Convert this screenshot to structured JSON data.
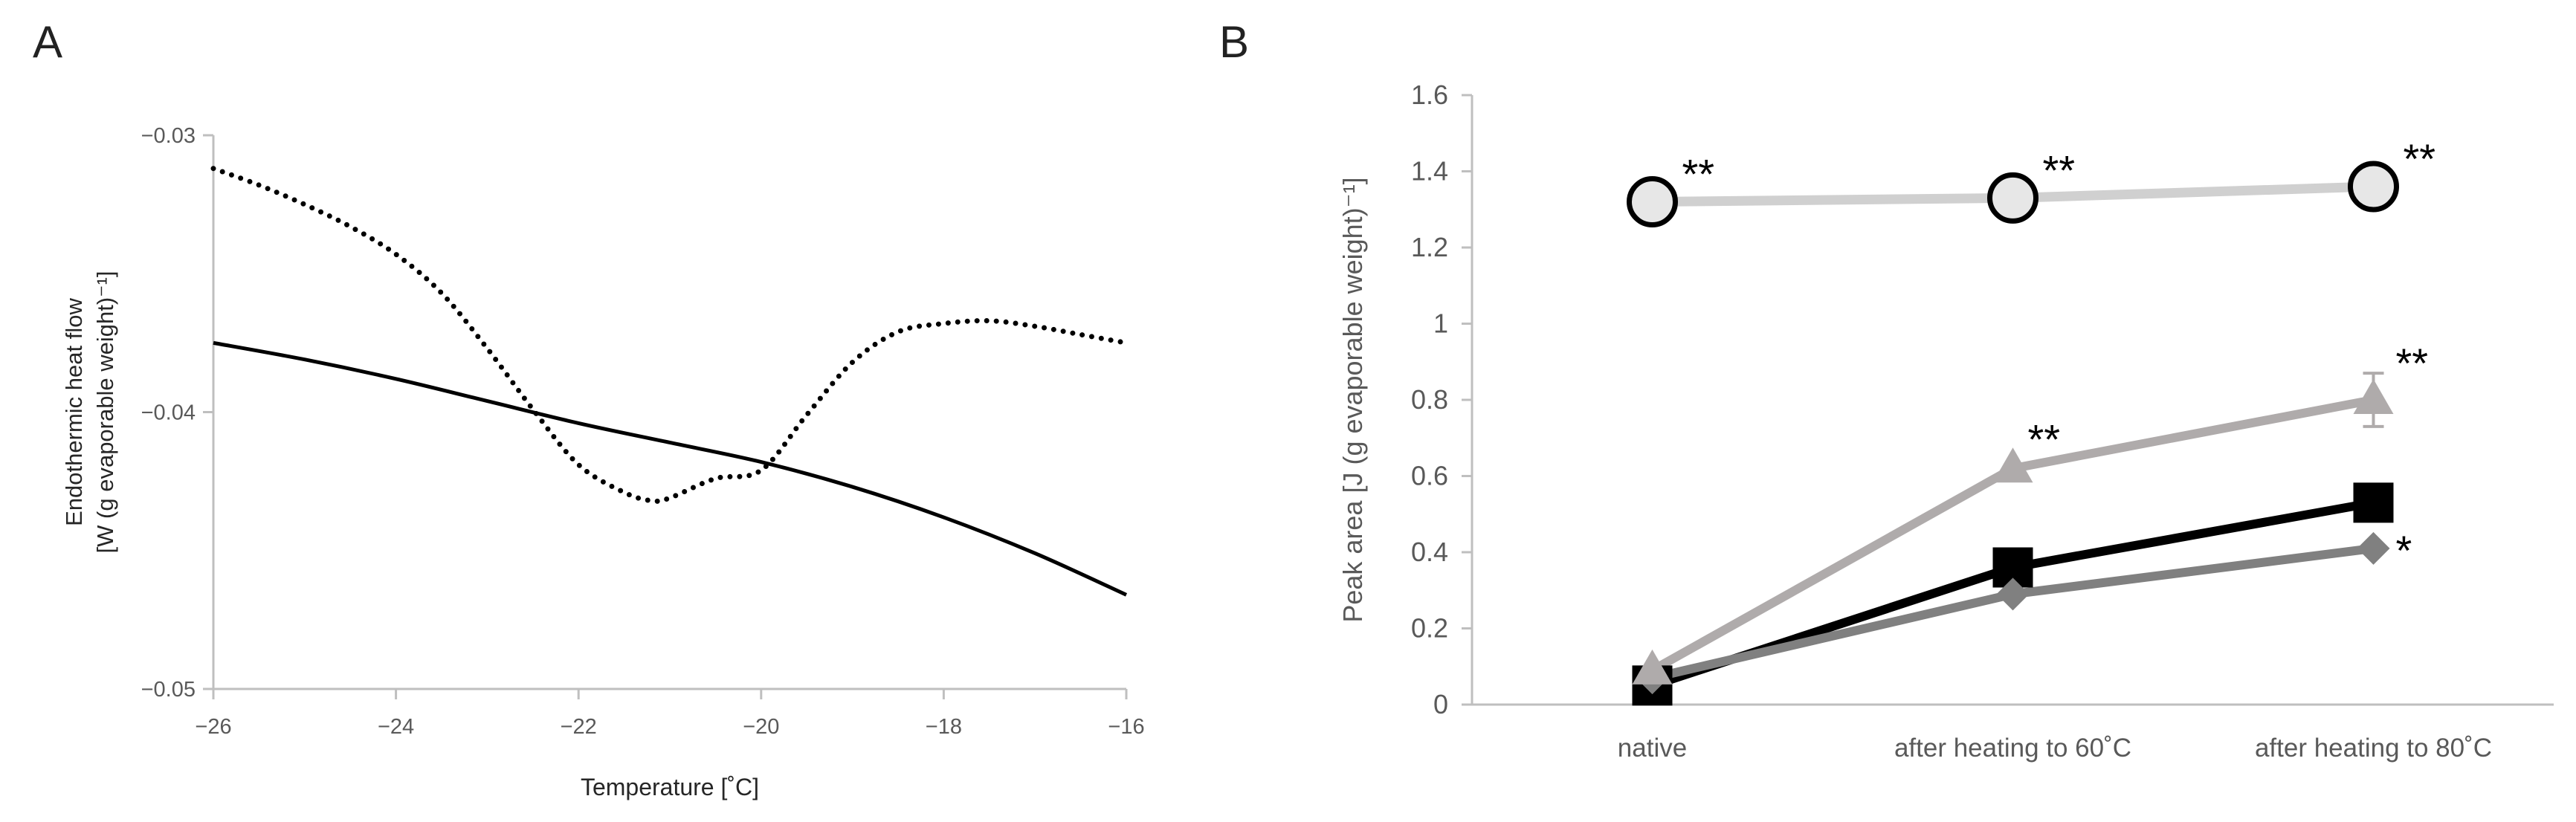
{
  "panel_a": {
    "letter": "A"
  },
  "panel_b": {
    "letter": "B"
  },
  "colors": {
    "axis": "#bfbfbf",
    "tick_text": "#595959",
    "axis_title": "#262626",
    "solid_line": "#000000",
    "dotted_line": "#000000",
    "series_circle_fill": "#e7e7e7",
    "series_circle_line": "#d0d0d0",
    "series_triangle": "#afabab",
    "series_square": "#000000",
    "series_diamond": "#808080"
  },
  "chart_data": [
    {
      "type": "line",
      "xlabel": "Temperature [˚C]",
      "ylabel": [
        "Endothermic heat flow",
        "[W (g evaporable weight)⁻¹]"
      ],
      "xlim": [
        -26,
        -16
      ],
      "ylim": [
        -0.05,
        -0.03
      ],
      "x_ticks": [
        -26,
        -24,
        -22,
        -20,
        -18,
        -16
      ],
      "x_tick_labels": [
        "−26",
        "−24",
        "−22",
        "−20",
        "−18",
        "−16"
      ],
      "y_ticks": [
        -0.05,
        -0.04,
        -0.03
      ],
      "y_tick_labels": [
        "−0.05",
        "−0.04",
        "−0.03"
      ],
      "grid": false,
      "legend": "none",
      "series": [
        {
          "style": "solid",
          "x": [
            -26,
            -25,
            -24,
            -23,
            -22,
            -21,
            -20,
            -19,
            -18,
            -17,
            -16
          ],
          "y": [
            -0.0375,
            -0.0381,
            -0.0388,
            -0.0396,
            -0.0404,
            -0.0411,
            -0.0418,
            -0.0427,
            -0.0438,
            -0.0451,
            -0.0466
          ]
        },
        {
          "style": "dotted",
          "x": [
            -26,
            -25.5,
            -25,
            -24.5,
            -24,
            -23.5,
            -23,
            -22.5,
            -22,
            -21.5,
            -21.2,
            -21,
            -20.5,
            -20,
            -19.5,
            -19,
            -18.5,
            -18,
            -17.5,
            -17,
            -16.5,
            -16
          ],
          "y": [
            -0.0312,
            -0.0318,
            -0.0325,
            -0.0333,
            -0.0343,
            -0.0357,
            -0.0377,
            -0.0399,
            -0.0419,
            -0.0429,
            -0.0432,
            -0.0431,
            -0.0424,
            -0.0421,
            -0.0401,
            -0.0382,
            -0.0371,
            -0.0368,
            -0.0367,
            -0.0369,
            -0.0372,
            -0.0375
          ]
        }
      ]
    },
    {
      "type": "line",
      "xlabel": "",
      "ylabel": "Peak area [J (g evaporable weight)⁻¹]",
      "categories": [
        "native",
        "after heating to 60˚C",
        "after heating to 80˚C"
      ],
      "ylim": [
        0,
        1.6
      ],
      "y_ticks": [
        0,
        0.2,
        0.4,
        0.6,
        0.8,
        1,
        1.2,
        1.4,
        1.6
      ],
      "y_tick_labels": [
        "0",
        "0.2",
        "0.4",
        "0.6",
        "0.8",
        "1",
        "1.2",
        "1.4",
        "1.6"
      ],
      "grid": false,
      "legend": "none",
      "series": [
        {
          "marker": "circle",
          "values": [
            1.32,
            1.33,
            1.36
          ],
          "annotations": [
            "**",
            "**",
            "**"
          ]
        },
        {
          "marker": "triangle",
          "values": [
            0.09,
            0.62,
            0.8
          ],
          "error": [
            0,
            0,
            0.07
          ],
          "annotations": [
            "",
            "**",
            "**"
          ]
        },
        {
          "marker": "square",
          "values": [
            0.05,
            0.36,
            0.53
          ],
          "annotations": [
            "",
            "",
            ""
          ]
        },
        {
          "marker": "diamond",
          "values": [
            0.07,
            0.29,
            0.41
          ],
          "annotations": [
            "",
            "",
            "*"
          ]
        }
      ]
    }
  ]
}
